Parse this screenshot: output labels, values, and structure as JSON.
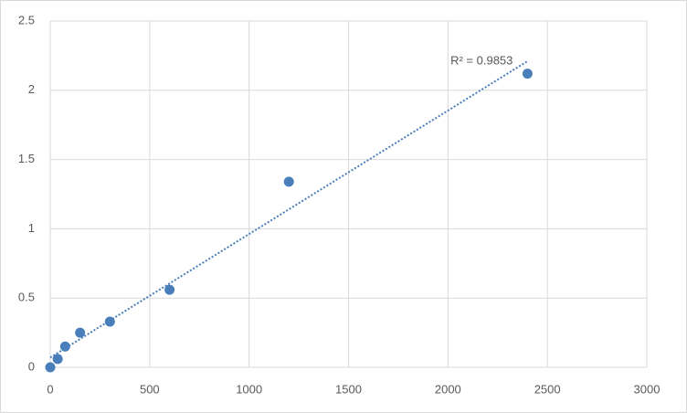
{
  "chart_data": {
    "type": "scatter",
    "x": [
      0,
      37.5,
      75,
      150,
      300,
      600,
      1200,
      2400
    ],
    "values": [
      0,
      0.06,
      0.15,
      0.25,
      0.33,
      0.56,
      1.34,
      2.12
    ],
    "color": "#4a7ebb",
    "trendline": "linear",
    "trendline_label": "R² = 0.9853",
    "xlim": [
      0,
      3000
    ],
    "xticks": [
      0,
      500,
      1000,
      1500,
      2000,
      2500,
      3000
    ],
    "ylim": [
      0,
      2.5
    ],
    "yticks": [
      0,
      0.5,
      1,
      1.5,
      2,
      2.5
    ],
    "grid": true
  }
}
